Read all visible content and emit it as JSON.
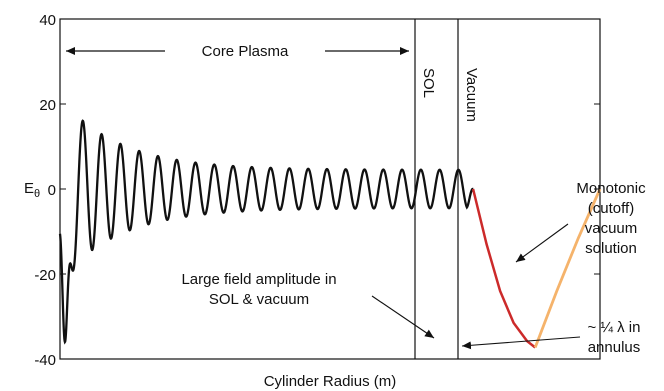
{
  "chart_data": {
    "type": "line",
    "title": "",
    "xlabel": "Cylinder Radius (m)",
    "ylabel": "E",
    "ylabel_sub": "θ",
    "ylim": [
      -40,
      40
    ],
    "yticks": [
      -40,
      -20,
      0,
      20,
      40
    ],
    "xlim": [
      0,
      1
    ],
    "grid": false,
    "legend": "none",
    "series": [
      {
        "role": "core-plasma",
        "color": "#111111",
        "x_range": [
          0.0,
          0.765
        ],
        "start_dip": -36,
        "peak_first": 21.5,
        "envelope_end": 4.5,
        "oscillations": 22
      },
      {
        "role": "sol",
        "color": "#cc2a2a",
        "x": [
          0.765,
          0.79,
          0.815,
          0.84,
          0.865,
          0.88
        ],
        "y": [
          0.0,
          -13,
          -24,
          -31.5,
          -35.8,
          -37.3
        ]
      },
      {
        "role": "vacuum",
        "color": "#f5b36b",
        "x": [
          0.88,
          0.92,
          0.96,
          1.0
        ],
        "y": [
          -37.3,
          -24,
          -11.5,
          0.0
        ]
      }
    ],
    "regions": [
      {
        "x": 0.755,
        "label": "SOL"
      },
      {
        "x": 0.877,
        "label": "Vacuum"
      }
    ],
    "annotations": {
      "core_label": "Core Plasma",
      "large_field_line1": "Large field amplitude in",
      "large_field_line2": "SOL & vacuum",
      "monotonic_line1": "Monotonic",
      "monotonic_line2": "(cutoff)",
      "monotonic_line3": "vacuum",
      "monotonic_line4": "solution",
      "quarter_line1": "~ ¼ λ in",
      "quarter_line2": "annulus"
    }
  }
}
